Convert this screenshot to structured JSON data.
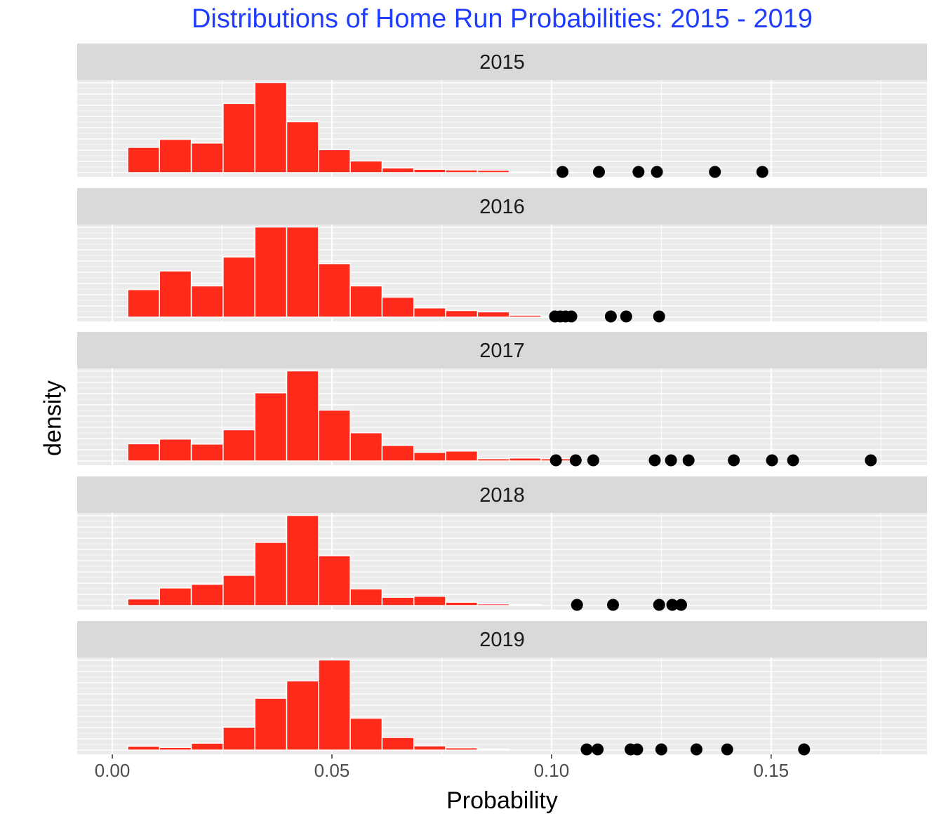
{
  "chart_data": {
    "type": "histogram",
    "title": "Distributions of Home Run Probabilities: 2015 - 2019",
    "xlabel": "Probability",
    "ylabel": "density",
    "xlim": [
      -0.008,
      0.1855
    ],
    "x_ticks": [
      {
        "value": 0.0,
        "label": "0.00"
      },
      {
        "value": 0.05,
        "label": "0.05"
      },
      {
        "value": 0.1,
        "label": "0.10"
      },
      {
        "value": 0.15,
        "label": "0.15"
      }
    ],
    "bin_start": 0.0035,
    "bin_width": 0.00724,
    "grid": true,
    "bar_color": "#ff2a1a",
    "point_color": "#000000",
    "facets": [
      {
        "label": "2015",
        "ymax": 27,
        "densities": [
          7.6,
          10.0,
          8.9,
          20.8,
          27.1,
          15.3,
          6.9,
          3.5,
          1.4,
          1.0,
          0.8,
          0.7,
          0.2,
          0.1
        ],
        "outliers": [
          0.1025,
          0.1108,
          0.1198,
          0.124,
          0.1372,
          0.148
        ]
      },
      {
        "label": "2016",
        "ymax": 27,
        "densities": [
          8.3,
          13.9,
          9.4,
          18.1,
          27.1,
          27.1,
          16.1,
          9.4,
          6.0,
          2.8,
          2.0,
          1.6,
          0.6,
          0.3
        ],
        "outliers": [
          0.1008,
          0.102,
          0.1032,
          0.1045,
          0.1135,
          0.117,
          0.1245
        ]
      },
      {
        "label": "2017",
        "ymax": 27,
        "densities": [
          5.2,
          6.6,
          5.1,
          9.4,
          20.5,
          27.1,
          15.3,
          8.5,
          4.7,
          2.6,
          3.0,
          0.7,
          0.9,
          0.7
        ],
        "outliers": [
          0.101,
          0.1055,
          0.1095,
          0.1235,
          0.1272,
          0.1312,
          0.1415,
          0.1502,
          0.155,
          0.1727
        ]
      },
      {
        "label": "2018",
        "ymax": 27,
        "densities": [
          2.0,
          5.3,
          6.4,
          9.1,
          19.0,
          27.1,
          15.0,
          5.0,
          2.5,
          2.8,
          1.0,
          0.5,
          0.3
        ],
        "outliers": [
          0.1058,
          0.114,
          0.1245,
          0.1275,
          0.1295
        ]
      },
      {
        "label": "2019",
        "ymax": 27,
        "densities": [
          1.2,
          0.8,
          2.1,
          6.9,
          15.6,
          20.8,
          27.1,
          9.6,
          3.8,
          1.3,
          0.7,
          0.3
        ],
        "outliers": [
          0.108,
          0.1105,
          0.118,
          0.1195,
          0.125,
          0.133,
          0.14,
          0.1575
        ]
      }
    ]
  }
}
